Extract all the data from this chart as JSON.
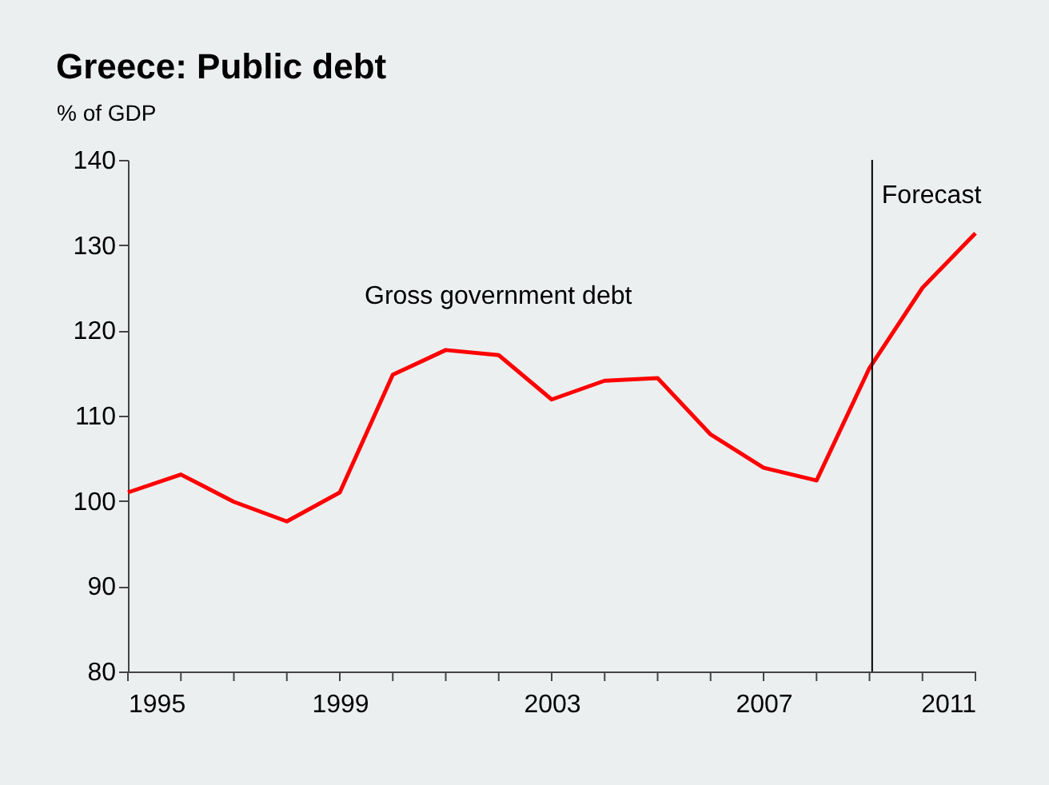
{
  "chart_data": {
    "type": "line",
    "title": "Greece: Public debt",
    "ylabel": "% of GDP",
    "x": [
      1995,
      1996,
      1997,
      1998,
      1999,
      2000,
      2001,
      2002,
      2003,
      2004,
      2005,
      2006,
      2007,
      2008,
      2009,
      2010,
      2011
    ],
    "series": [
      {
        "color": "#ff0000",
        "values": [
          101,
          103.1,
          99.9,
          97.6,
          101,
          114.8,
          117.7,
          117.1,
          111.9,
          114.1,
          114.4,
          107.8,
          103.9,
          102.4,
          115.6,
          125,
          131.4
        ]
      }
    ],
    "xlim": [
      1995,
      2011
    ],
    "xticks": [
      1995,
      {
        "value": 1996,
        "label": null
      },
      {
        "value": 1997,
        "label": null
      },
      {
        "value": 1998,
        "label": null
      },
      1999,
      {
        "value": 2000,
        "label": null
      },
      {
        "value": 2001,
        "label": null
      },
      {
        "value": 2002,
        "label": null
      },
      2003,
      {
        "value": 2004,
        "label": null
      },
      {
        "value": 2005,
        "label": null
      },
      {
        "value": 2006,
        "label": null
      },
      2007,
      {
        "value": 2008,
        "label": null
      },
      {
        "value": 2009,
        "label": null
      },
      {
        "value": 2010,
        "label": null
      },
      2011
    ],
    "ylim": [
      80,
      140
    ],
    "yticks": [
      80,
      90,
      100,
      110,
      120,
      130,
      140
    ],
    "ref_lines": [
      {
        "axis": "x",
        "value": 2009.05,
        "label": "Forecast",
        "color": "#000000"
      }
    ],
    "annotations": [
      "Gross government debt"
    ],
    "grid": false,
    "marker": "none",
    "line_style": "solid"
  }
}
